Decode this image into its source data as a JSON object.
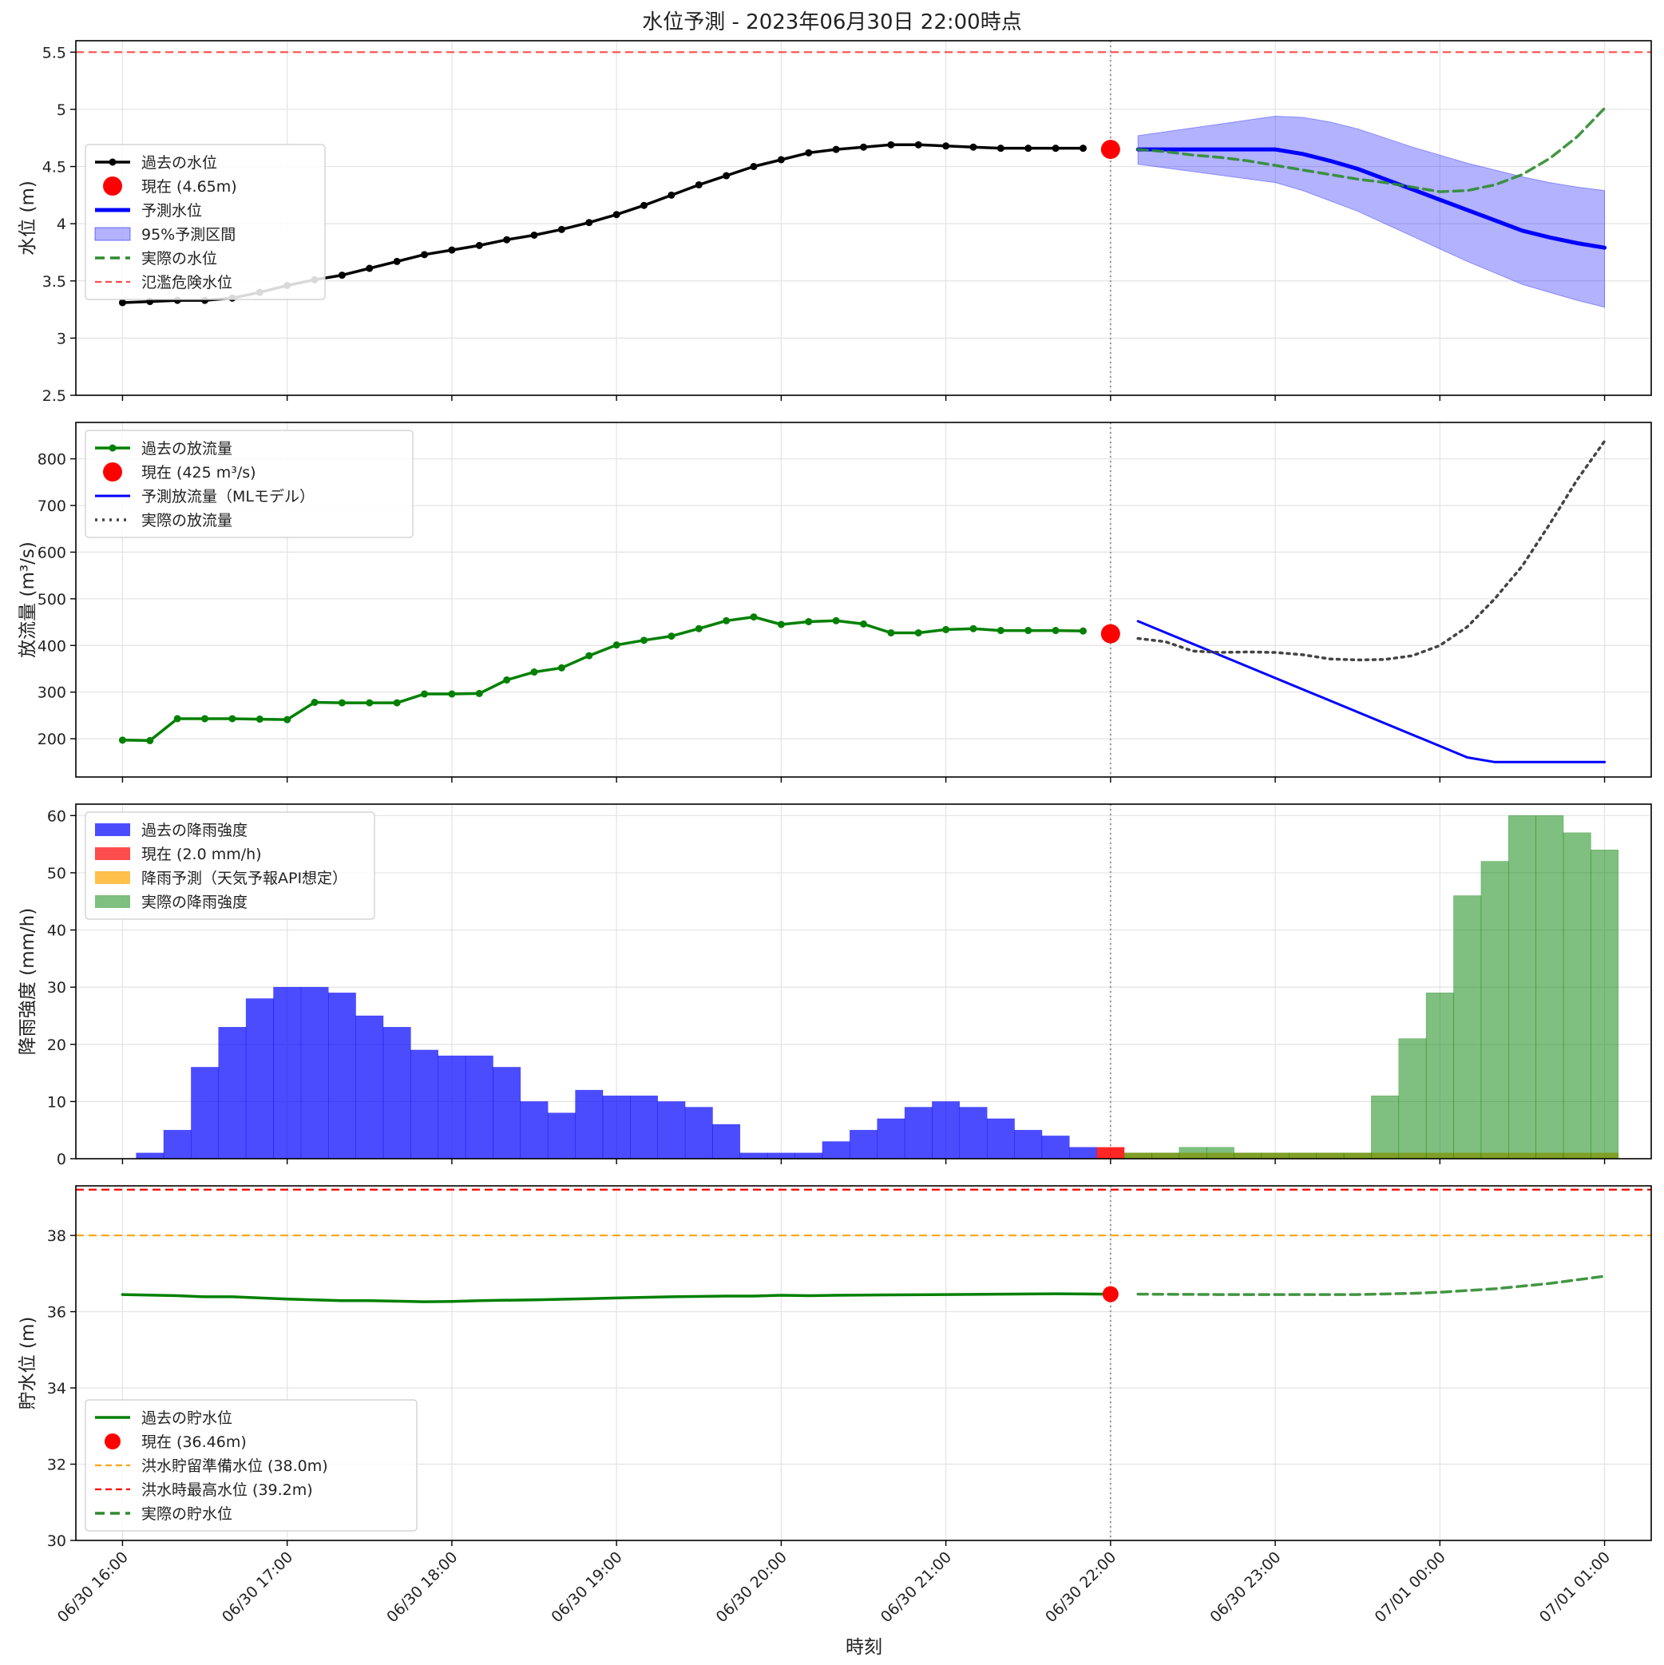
{
  "title": "水位予測 - 2023年06月30日 22:00時点",
  "x_axis": {
    "label": "時刻",
    "start": "06/30 15:43",
    "end": "07/01 01:17",
    "ticks": [
      {
        "t": "06/30 16:00",
        "label": "06/30 16:00"
      },
      {
        "t": "06/30 17:00",
        "label": "06/30 17:00"
      },
      {
        "t": "06/30 18:00",
        "label": "06/30 18:00"
      },
      {
        "t": "06/30 19:00",
        "label": "06/30 19:00"
      },
      {
        "t": "06/30 20:00",
        "label": "06/30 20:00"
      },
      {
        "t": "06/30 21:00",
        "label": "06/30 21:00"
      },
      {
        "t": "06/30 22:00",
        "label": "06/30 22:00"
      },
      {
        "t": "06/30 23:00",
        "label": "06/30 23:00"
      },
      {
        "t": "07/01 00:00",
        "label": "07/01 00:00"
      },
      {
        "t": "07/01 01:00",
        "label": "07/01 01:00"
      }
    ],
    "current_time": "06/30 22:00"
  },
  "chart_data": [
    {
      "type": "line",
      "ylabel": "水位 (m)",
      "ylim": [
        2.5,
        5.6
      ],
      "yticks": [
        2.5,
        3.0,
        3.5,
        4.0,
        4.5,
        5.0,
        5.5
      ],
      "grid": true,
      "legend_position": "center-left",
      "legend": [
        "過去の水位",
        "現在 (4.65m)",
        "予測水位",
        "95%予測区間",
        "実際の水位",
        "氾濫危険水位"
      ],
      "colors": {
        "past": "#000000",
        "current": "#ff0000",
        "forecast": "#0000ff",
        "interval": "#0000ff",
        "actual": "#2e8b2e",
        "danger": "#ff4d4d"
      },
      "danger_level": 5.5,
      "past": {
        "times": [
          "06/30 16:00",
          "06/30 16:10",
          "06/30 16:20",
          "06/30 16:30",
          "06/30 16:40",
          "06/30 16:50",
          "06/30 17:00",
          "06/30 17:10",
          "06/30 17:20",
          "06/30 17:30",
          "06/30 17:40",
          "06/30 17:50",
          "06/30 18:00",
          "06/30 18:10",
          "06/30 18:20",
          "06/30 18:30",
          "06/30 18:40",
          "06/30 18:50",
          "06/30 19:00",
          "06/30 19:10",
          "06/30 19:20",
          "06/30 19:30",
          "06/30 19:40",
          "06/30 19:50",
          "06/30 20:00",
          "06/30 20:10",
          "06/30 20:20",
          "06/30 20:30",
          "06/30 20:40",
          "06/30 20:50",
          "06/30 21:00",
          "06/30 21:10",
          "06/30 21:20",
          "06/30 21:30",
          "06/30 21:40",
          "06/30 21:50"
        ],
        "values": [
          3.31,
          3.32,
          3.33,
          3.33,
          3.35,
          3.4,
          3.46,
          3.51,
          3.55,
          3.61,
          3.67,
          3.73,
          3.77,
          3.81,
          3.86,
          3.9,
          3.95,
          4.01,
          4.08,
          4.16,
          4.25,
          4.34,
          4.42,
          4.5,
          4.56,
          4.62,
          4.65,
          4.67,
          4.69,
          4.69,
          4.68,
          4.67,
          4.66,
          4.66,
          4.66,
          4.66
        ]
      },
      "current": {
        "time": "06/30 22:00",
        "value": 4.65,
        "label": "現在 (4.65m)"
      },
      "forecast": {
        "times": [
          "06/30 22:10",
          "06/30 23:00",
          "06/30 23:10",
          "06/30 23:20",
          "06/30 23:30",
          "06/30 23:40",
          "06/30 23:50",
          "07/01 00:00",
          "07/01 00:10",
          "07/01 00:20",
          "07/01 00:30",
          "07/01 00:40",
          "07/01 00:50",
          "07/01 01:00"
        ],
        "values": [
          4.65,
          4.65,
          4.61,
          4.55,
          4.48,
          4.39,
          4.3,
          4.21,
          4.12,
          4.03,
          3.94,
          3.88,
          3.83,
          3.79
        ],
        "lower": [
          4.52,
          4.36,
          4.29,
          4.2,
          4.11,
          4.0,
          3.89,
          3.78,
          3.67,
          3.57,
          3.47,
          3.4,
          3.33,
          3.27
        ],
        "upper": [
          4.77,
          4.94,
          4.93,
          4.89,
          4.83,
          4.75,
          4.67,
          4.6,
          4.53,
          4.47,
          4.41,
          4.36,
          4.32,
          4.29
        ]
      },
      "actual": {
        "times": [
          "06/30 22:10",
          "06/30 22:20",
          "06/30 22:30",
          "06/30 22:40",
          "06/30 22:50",
          "06/30 23:00",
          "06/30 23:10",
          "06/30 23:20",
          "06/30 23:30",
          "06/30 23:40",
          "06/30 23:50",
          "07/01 00:00",
          "07/01 00:10",
          "07/01 00:20",
          "07/01 00:30",
          "07/01 00:40",
          "07/01 00:50",
          "07/01 01:00"
        ],
        "values": [
          4.65,
          4.63,
          4.6,
          4.58,
          4.55,
          4.51,
          4.47,
          4.43,
          4.39,
          4.36,
          4.32,
          4.28,
          4.29,
          4.34,
          4.43,
          4.57,
          4.76,
          5.01
        ]
      }
    },
    {
      "type": "line",
      "ylabel": "放流量 (m³/s)",
      "ylim": [
        118,
        878
      ],
      "yticks": [
        200,
        300,
        400,
        500,
        600,
        700,
        800
      ],
      "grid": true,
      "legend_position": "top-left",
      "legend": [
        "過去の放流量",
        "現在 (425 m³/s)",
        "予測放流量（MLモデル）",
        "実際の放流量"
      ],
      "colors": {
        "past": "#008000",
        "current": "#ff0000",
        "forecast": "#0000ff",
        "actual": "#444444"
      },
      "past": {
        "times": [
          "06/30 16:00",
          "06/30 16:10",
          "06/30 16:20",
          "06/30 16:30",
          "06/30 16:40",
          "06/30 16:50",
          "06/30 17:00",
          "06/30 17:10",
          "06/30 17:20",
          "06/30 17:30",
          "06/30 17:40",
          "06/30 17:50",
          "06/30 18:00",
          "06/30 18:10",
          "06/30 18:20",
          "06/30 18:30",
          "06/30 18:40",
          "06/30 18:50",
          "06/30 19:00",
          "06/30 19:10",
          "06/30 19:20",
          "06/30 19:30",
          "06/30 19:40",
          "06/30 19:50",
          "06/30 20:00",
          "06/30 20:10",
          "06/30 20:20",
          "06/30 20:30",
          "06/30 20:40",
          "06/30 20:50",
          "06/30 21:00",
          "06/30 21:10",
          "06/30 21:20",
          "06/30 21:30",
          "06/30 21:40",
          "06/30 21:50"
        ],
        "values": [
          197,
          196,
          243,
          243,
          243,
          242,
          241,
          278,
          277,
          277,
          277,
          296,
          296,
          297,
          326,
          343,
          352,
          378,
          401,
          411,
          420,
          436,
          453,
          461,
          445,
          451,
          453,
          446,
          427,
          427,
          434,
          436,
          432,
          432,
          432,
          431
        ]
      },
      "current": {
        "time": "06/30 22:00",
        "value": 425,
        "label": "現在 (425 m³/s)"
      },
      "forecast": {
        "times": [
          "06/30 22:10",
          "07/01 00:10",
          "07/01 00:20",
          "07/01 01:00"
        ],
        "values": [
          452,
          160,
          150,
          150
        ]
      },
      "actual": {
        "times": [
          "06/30 22:10",
          "06/30 22:20",
          "06/30 22:30",
          "06/30 22:40",
          "06/30 22:50",
          "06/30 23:00",
          "06/30 23:10",
          "06/30 23:20",
          "06/30 23:30",
          "06/30 23:40",
          "06/30 23:50",
          "07/01 00:00",
          "07/01 00:10",
          "07/01 00:20",
          "07/01 00:30",
          "07/01 00:40",
          "07/01 00:50",
          "07/01 01:00"
        ],
        "values": [
          415,
          408,
          388,
          385,
          386,
          385,
          380,
          371,
          369,
          370,
          378,
          400,
          440,
          500,
          570,
          660,
          755,
          838
        ]
      }
    },
    {
      "type": "bar",
      "ylabel": "降雨強度 (mm/h)",
      "ylim": [
        0,
        62
      ],
      "yticks": [
        0,
        10,
        20,
        30,
        40,
        50,
        60
      ],
      "grid": true,
      "legend_position": "top-left",
      "legend": [
        "過去の降雨強度",
        "現在 (2.0 mm/h)",
        "降雨予測（天気予報API想定）",
        "実際の降雨強度"
      ],
      "colors": {
        "past": "#0000ff",
        "current": "#ff0000",
        "forecast": "#ffa500",
        "actual": "#008000"
      },
      "bar_width_minutes": 10,
      "past": {
        "times": [
          "06/30 16:00",
          "06/30 16:10",
          "06/30 16:20",
          "06/30 16:30",
          "06/30 16:40",
          "06/30 16:50",
          "06/30 17:00",
          "06/30 17:10",
          "06/30 17:20",
          "06/30 17:30",
          "06/30 17:40",
          "06/30 17:50",
          "06/30 18:00",
          "06/30 18:10",
          "06/30 18:20",
          "06/30 18:30",
          "06/30 18:40",
          "06/30 18:50",
          "06/30 19:00",
          "06/30 19:10",
          "06/30 19:20",
          "06/30 19:30",
          "06/30 19:40",
          "06/30 19:50",
          "06/30 20:00",
          "06/30 20:10",
          "06/30 20:20",
          "06/30 20:30",
          "06/30 20:40",
          "06/30 20:50",
          "06/30 21:00",
          "06/30 21:10",
          "06/30 21:20",
          "06/30 21:30",
          "06/30 21:40",
          "06/30 21:50"
        ],
        "values": [
          0,
          1,
          5,
          16,
          23,
          28,
          30,
          30,
          29,
          25,
          23,
          19,
          18,
          18,
          16,
          10,
          8,
          12,
          11,
          11,
          10,
          9,
          6,
          1,
          1,
          1,
          3,
          5,
          7,
          9,
          10,
          9,
          7,
          5,
          4,
          2
        ]
      },
      "current": {
        "time": "06/30 22:00",
        "value": 2.0,
        "label": "現在 (2.0 mm/h)"
      },
      "forecast": {
        "times": [
          "06/30 22:10",
          "06/30 22:20",
          "06/30 22:30",
          "06/30 22:40",
          "06/30 22:50",
          "06/30 23:00",
          "06/30 23:10",
          "06/30 23:20",
          "06/30 23:30",
          "06/30 23:40",
          "06/30 23:50",
          "07/01 00:00",
          "07/01 00:10",
          "07/01 00:20",
          "07/01 00:30",
          "07/01 00:40",
          "07/01 00:50",
          "07/01 01:00"
        ],
        "values": [
          1,
          1,
          1,
          1,
          1,
          1,
          1,
          1,
          1,
          1,
          1,
          1,
          1,
          1,
          1,
          1,
          1,
          1
        ]
      },
      "actual": {
        "times": [
          "06/30 22:10",
          "06/30 22:20",
          "06/30 22:30",
          "06/30 22:40",
          "06/30 22:50",
          "06/30 23:00",
          "06/30 23:10",
          "06/30 23:20",
          "06/30 23:30",
          "06/30 23:40",
          "06/30 23:50",
          "07/01 00:00",
          "07/01 00:10",
          "07/01 00:20",
          "07/01 00:30",
          "07/01 00:40",
          "07/01 00:50",
          "07/01 01:00"
        ],
        "values": [
          1,
          1,
          2,
          2,
          1,
          1,
          1,
          1,
          1,
          11,
          21,
          29,
          46,
          52,
          60,
          60,
          57,
          54
        ]
      }
    },
    {
      "type": "line",
      "ylabel": "貯水位 (m)",
      "ylim": [
        30,
        39.3
      ],
      "yticks": [
        30,
        32,
        34,
        36,
        38
      ],
      "grid": true,
      "legend_position": "bottom-left",
      "legend": [
        "過去の貯水位",
        "現在 (36.46m)",
        "洪水貯留準備水位 (38.0m)",
        "洪水時最高水位 (39.2m)",
        "実際の貯水位"
      ],
      "colors": {
        "past": "#008000",
        "current": "#ff0000",
        "prep": "#ffa500",
        "max": "#ff0000",
        "actual": "#2e8b2e"
      },
      "prep_level": 38.0,
      "max_level": 39.2,
      "past": {
        "times": [
          "06/30 16:00",
          "06/30 16:20",
          "06/30 16:30",
          "06/30 16:40",
          "06/30 17:00",
          "06/30 17:20",
          "06/30 17:30",
          "06/30 17:50",
          "06/30 18:00",
          "06/30 18:10",
          "06/30 18:30",
          "06/30 18:50",
          "06/30 19:00",
          "06/30 19:20",
          "06/30 19:40",
          "06/30 19:50",
          "06/30 20:00",
          "06/30 20:10",
          "06/30 20:20",
          "06/30 20:40",
          "06/30 21:00",
          "06/30 21:20",
          "06/30 21:40",
          "06/30 22:00"
        ],
        "values": [
          36.45,
          36.42,
          36.39,
          36.39,
          36.33,
          36.29,
          36.29,
          36.26,
          36.27,
          36.29,
          36.31,
          36.34,
          36.36,
          36.39,
          36.41,
          36.41,
          36.43,
          36.42,
          36.43,
          36.44,
          36.45,
          36.46,
          36.47,
          36.46
        ]
      },
      "current": {
        "time": "06/30 22:00",
        "value": 36.46,
        "label": "現在 (36.46m)"
      },
      "actual": {
        "times": [
          "06/30 22:10",
          "06/30 22:40",
          "06/30 23:00",
          "06/30 23:30",
          "06/30 23:50",
          "07/01 00:00",
          "07/01 00:20",
          "07/01 00:40",
          "07/01 01:00"
        ],
        "values": [
          36.46,
          36.45,
          36.45,
          36.45,
          36.48,
          36.51,
          36.6,
          36.74,
          36.93
        ]
      }
    }
  ]
}
